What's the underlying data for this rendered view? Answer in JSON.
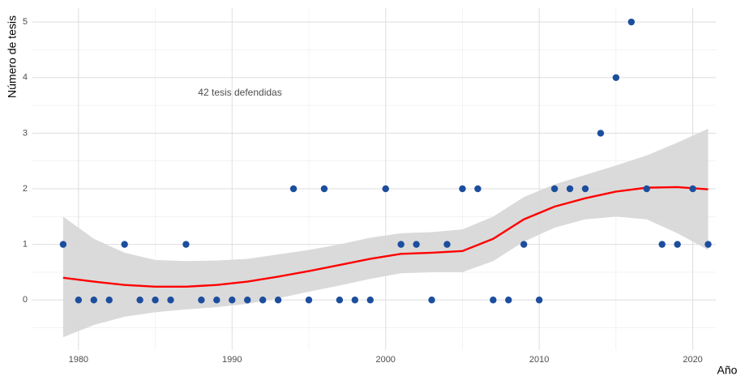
{
  "chart_data": {
    "type": "scatter",
    "annotation": "42 tesis defendidas",
    "x_label": "Año",
    "y_label": "Número de tesis",
    "xlim": [
      1977,
      2021.5
    ],
    "ylim": [
      -0.9,
      5.25
    ],
    "xticks": [
      1980,
      1990,
      2000,
      2010,
      2020
    ],
    "yticks": [
      0,
      1,
      2,
      3,
      4,
      5
    ],
    "x_minor_ticks": [
      1985,
      1995,
      2005,
      2015
    ],
    "y_minor_ticks": [
      -0.5,
      0.5,
      1.5,
      2.5,
      3.5,
      4.5
    ],
    "grid": true,
    "point_color": "#1c4e9e",
    "x": [
      1979,
      1980,
      1981,
      1982,
      1983,
      1984,
      1985,
      1986,
      1987,
      1988,
      1989,
      1990,
      1991,
      1992,
      1993,
      1994,
      1995,
      1996,
      1997,
      1998,
      1999,
      2000,
      2001,
      2002,
      2003,
      2004,
      2005,
      2006,
      2007,
      2008,
      2009,
      2010,
      2011,
      2012,
      2013,
      2014,
      2015,
      2016,
      2017,
      2018,
      2019,
      2020,
      2021
    ],
    "values": [
      1,
      0,
      0,
      0,
      1,
      0,
      0,
      0,
      1,
      0,
      0,
      0,
      0,
      0,
      0,
      2,
      0,
      2,
      0,
      0,
      0,
      2,
      1,
      1,
      0,
      1,
      2,
      2,
      0,
      0,
      1,
      0,
      2,
      2,
      2,
      3,
      4,
      5,
      2,
      1,
      1,
      2,
      1
    ],
    "smooth": {
      "color": "#ff0000",
      "band_color": "#d6d6d6",
      "x": [
        1979,
        1981,
        1983,
        1985,
        1987,
        1989,
        1991,
        1993,
        1995,
        1997,
        1999,
        2001,
        2003,
        2005,
        2007,
        2009,
        2011,
        2013,
        2015,
        2017,
        2019,
        2021
      ],
      "values": [
        0.4,
        0.33,
        0.27,
        0.24,
        0.24,
        0.27,
        0.33,
        0.42,
        0.52,
        0.63,
        0.74,
        0.83,
        0.85,
        0.88,
        1.1,
        1.45,
        1.68,
        1.83,
        1.95,
        2.02,
        2.03,
        1.99
      ],
      "lower": [
        -0.67,
        -0.45,
        -0.3,
        -0.22,
        -0.17,
        -0.13,
        -0.07,
        0.03,
        0.15,
        0.26,
        0.38,
        0.48,
        0.5,
        0.5,
        0.7,
        1.05,
        1.3,
        1.45,
        1.5,
        1.45,
        1.2,
        0.9
      ],
      "upper": [
        1.5,
        1.1,
        0.85,
        0.72,
        0.7,
        0.71,
        0.74,
        0.82,
        0.9,
        1.0,
        1.12,
        1.2,
        1.22,
        1.27,
        1.5,
        1.85,
        2.08,
        2.25,
        2.42,
        2.6,
        2.83,
        3.08
      ]
    }
  }
}
